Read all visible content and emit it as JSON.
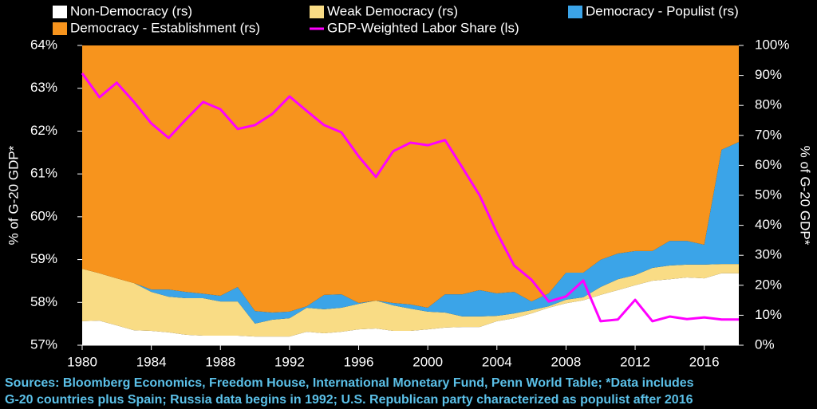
{
  "chart_data": {
    "type": "area",
    "stacked": true,
    "ylabel": "% of G-20 GDP*",
    "y2label": "% of G-20 GDP*",
    "x": [
      1980,
      1981,
      1982,
      1983,
      1984,
      1985,
      1986,
      1987,
      1988,
      1989,
      1990,
      1991,
      1992,
      1993,
      1994,
      1995,
      1996,
      1997,
      1998,
      1999,
      2000,
      2001,
      2002,
      2003,
      2004,
      2005,
      2006,
      2007,
      2008,
      2009,
      2010,
      2011,
      2012,
      2013,
      2014,
      2015,
      2016,
      2017,
      2018
    ],
    "xlim": [
      1980,
      2018
    ],
    "xticks": [
      1980,
      1984,
      1988,
      1992,
      1996,
      2000,
      2004,
      2008,
      2012,
      2016
    ],
    "ylim": [
      57,
      64
    ],
    "yticks": [
      {
        "value": 57,
        "label": "57%"
      },
      {
        "value": 58,
        "label": "58%"
      },
      {
        "value": 59,
        "label": "59%"
      },
      {
        "value": 60,
        "label": "60%"
      },
      {
        "value": 61,
        "label": "61%"
      },
      {
        "value": 62,
        "label": "62%"
      },
      {
        "value": 63,
        "label": "63%"
      },
      {
        "value": 64,
        "label": "64%"
      }
    ],
    "y2lim": [
      0,
      100
    ],
    "y2ticks": [
      {
        "value": 0,
        "label": "0%"
      },
      {
        "value": 10,
        "label": "10%"
      },
      {
        "value": 20,
        "label": "20%"
      },
      {
        "value": 30,
        "label": "30%"
      },
      {
        "value": 40,
        "label": "40%"
      },
      {
        "value": 50,
        "label": "50%"
      },
      {
        "value": 60,
        "label": "60%"
      },
      {
        "value": 70,
        "label": "70%"
      },
      {
        "value": 80,
        "label": "80%"
      },
      {
        "value": 90,
        "label": "90%"
      },
      {
        "value": 100,
        "label": "100%"
      }
    ],
    "series": [
      {
        "name": "Non-Democracy (rs)",
        "color": "#ffffff",
        "axis": "y2",
        "values": [
          8,
          8.2,
          6.6,
          5,
          4.8,
          4.3,
          3.5,
          3.2,
          3.2,
          3.2,
          2.9,
          2.9,
          2.9,
          4.5,
          4,
          4.5,
          5.3,
          5.6,
          4.8,
          4.8,
          5.3,
          5.9,
          6.1,
          6.1,
          8,
          9,
          10.6,
          12.5,
          14,
          15,
          16.8,
          18.4,
          20,
          21.5,
          22,
          22.6,
          22.3,
          24,
          24
        ]
      },
      {
        "name": "Weak Democracy (rs)",
        "color": "#f9dc85",
        "axis": "y2",
        "values": [
          17.5,
          15.8,
          15.7,
          15.7,
          13,
          11.9,
          12.2,
          12.5,
          11.4,
          11.4,
          4.3,
          5.6,
          6.1,
          8,
          8,
          8,
          8.5,
          9.3,
          8.5,
          7.4,
          5.9,
          5,
          3.5,
          3.5,
          1.8,
          1.6,
          1.1,
          0.5,
          1.2,
          1,
          2.6,
          3.6,
          3.4,
          4.3,
          4.6,
          4.3,
          4.6,
          3.1,
          3.1
        ]
      },
      {
        "name": "Democracy - Populist (rs)",
        "color": "#3ba4e8",
        "axis": "y2",
        "values": [
          0,
          0,
          0,
          0,
          0.8,
          2.4,
          2.1,
          1.5,
          1.9,
          4.8,
          4.2,
          2.4,
          2.2,
          0.5,
          4.8,
          4.5,
          0.3,
          0,
          0.8,
          1.4,
          1.3,
          6.1,
          7.4,
          8.8,
          7.5,
          7.2,
          2.9,
          4.3,
          9,
          8.2,
          9.1,
          8.6,
          8,
          5.6,
          8.2,
          7.9,
          6.6,
          38.1,
          40.7
        ]
      },
      {
        "name": "Democracy - Establishment (rs)",
        "color": "#f7941d",
        "axis": "y2",
        "values": [
          74.5,
          76,
          77.7,
          79.3,
          81.4,
          81.4,
          82.2,
          82.8,
          83.5,
          80.6,
          88.6,
          89.1,
          88.8,
          87,
          83.2,
          83,
          85.9,
          85.1,
          85.9,
          86.4,
          87.5,
          83,
          83,
          81.6,
          82.7,
          82.2,
          85.4,
          82.7,
          75.8,
          75.8,
          71.5,
          69.4,
          68.6,
          68.6,
          65.2,
          65.2,
          66.5,
          34.8,
          32.2
        ]
      },
      {
        "name": "GDP-Weighted Labor Share (ls)",
        "color": "#ff00ff",
        "axis": "y",
        "type": "line",
        "values": [
          63.35,
          62.79,
          63.13,
          62.68,
          62.18,
          61.84,
          62.27,
          62.68,
          62.51,
          62.05,
          62.14,
          62.4,
          62.81,
          62.47,
          62.14,
          61.97,
          61.41,
          60.93,
          61.53,
          61.73,
          61.67,
          61.79,
          61.15,
          60.5,
          59.63,
          58.86,
          58.53,
          58.02,
          58.14,
          58.51,
          57.56,
          57.6,
          58.06,
          57.56,
          57.67,
          57.61,
          57.65,
          57.6,
          57.6
        ]
      }
    ],
    "notes": [
      "Sources: Bloomberg Economics, Freedom House, International Monetary Fund, Penn World Table; *Data includes",
      "G-20 countries plus Spain; Russia data begins in 1992; U.S. Republican party characterized as populist after 2016"
    ]
  }
}
